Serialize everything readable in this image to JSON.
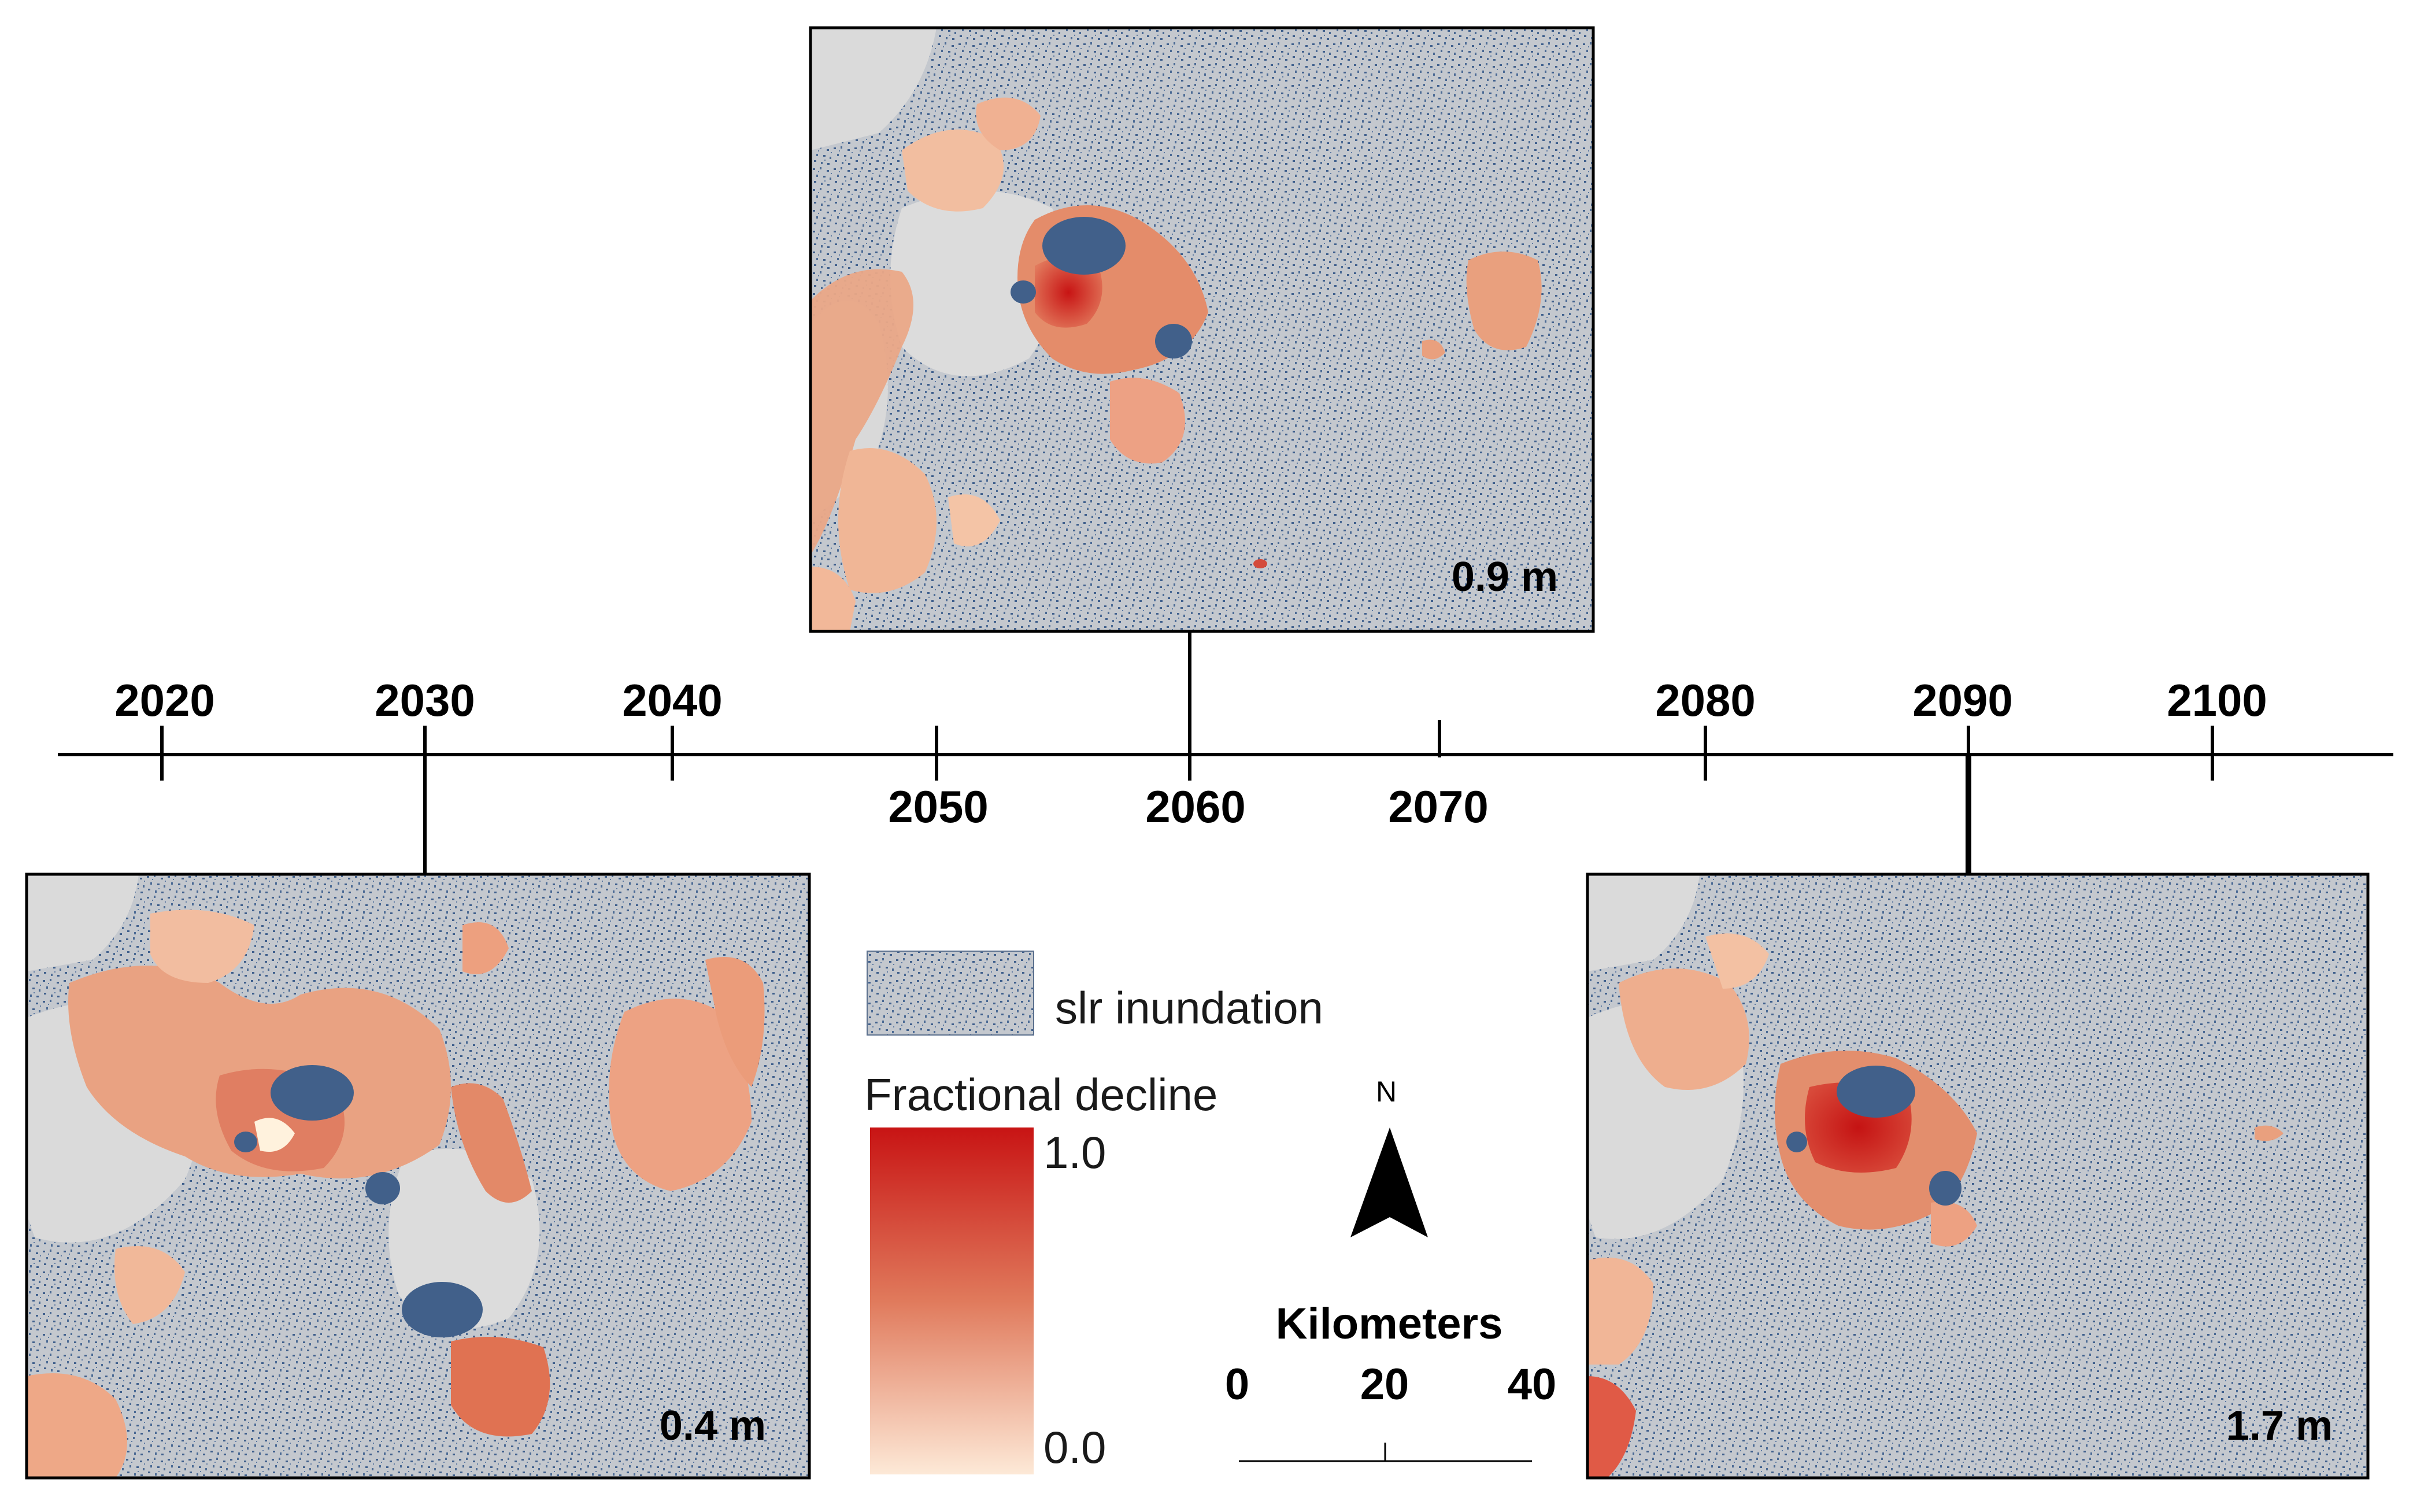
{
  "timeline": {
    "years_top": [
      "2020",
      "2030",
      "2040",
      "2080",
      "2090",
      "2100"
    ],
    "years_bottom": [
      "2050",
      "2060",
      "2070"
    ]
  },
  "maps": [
    {
      "id": "left",
      "label": "0.4 m",
      "year": "2030"
    },
    {
      "id": "top",
      "label": "0.9 m",
      "year": "2060"
    },
    {
      "id": "right",
      "label": "1.7 m",
      "year": "2090"
    }
  ],
  "legend": {
    "inundation_label": "slr inundation",
    "decline_title": "Fractional decline",
    "max_label": "1.0",
    "min_label": "0.0",
    "colors": {
      "high": "#c81414",
      "mid": "#e07a5c",
      "low": "#fde9d7",
      "inundation_fill": "#c9ccd1",
      "inundation_dots": "#41608a",
      "lake": "#41608a"
    }
  },
  "north_arrow": {
    "label": "N"
  },
  "scale_bar": {
    "title": "Kilometers",
    "ticks": [
      "0",
      "20",
      "40"
    ]
  }
}
